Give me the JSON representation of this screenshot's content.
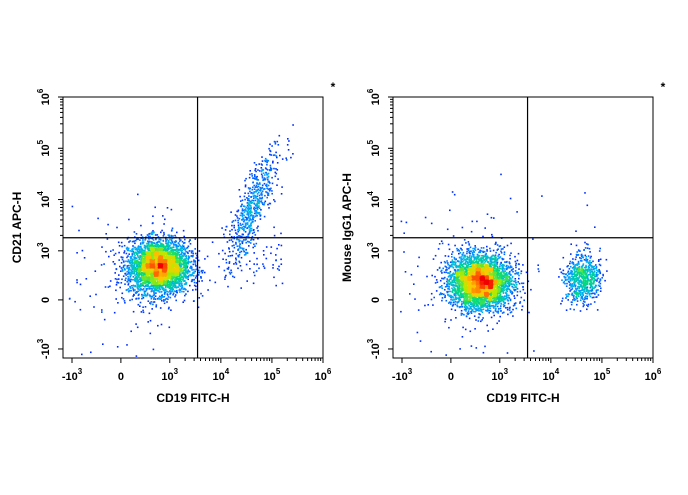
{
  "chart_data": [
    {
      "type": "scatter",
      "subtype": "flow-cytometry-density-dot-plot",
      "xlabel": "CD19 FITC-H",
      "ylabel": "CD21 APC-H",
      "corner_mark": "*",
      "axis_scale": "biexponential",
      "x_ticks": [
        {
          "base": "-10",
          "exp": "3",
          "value": -1000
        },
        {
          "base": "0",
          "exp": "",
          "value": 0
        },
        {
          "base": "10",
          "exp": "3",
          "value": 1000
        },
        {
          "base": "10",
          "exp": "4",
          "value": 10000
        },
        {
          "base": "10",
          "exp": "5",
          "value": 100000
        },
        {
          "base": "10",
          "exp": "6",
          "value": 1000000
        }
      ],
      "y_ticks": [
        {
          "base": "-10",
          "exp": "3",
          "value": -1000
        },
        {
          "base": "0",
          "exp": "",
          "value": 0
        },
        {
          "base": "10",
          "exp": "3",
          "value": 1000
        },
        {
          "base": "10",
          "exp": "4",
          "value": 10000
        },
        {
          "base": "10",
          "exp": "5",
          "value": 100000
        },
        {
          "base": "10",
          "exp": "6",
          "value": 1000000
        }
      ],
      "xlim": [
        -1500,
        1000000
      ],
      "ylim": [
        -1500,
        1000000
      ],
      "quadrant_gate": {
        "x": 3500,
        "y": 1800
      },
      "populations": [
        {
          "name": "CD19- CD21-",
          "center": {
            "x": 600,
            "y": 500
          },
          "density": "high"
        },
        {
          "name": "CD19+ CD21+",
          "center": {
            "x": 40000,
            "y": 7000
          },
          "density": "medium"
        }
      ]
    },
    {
      "type": "scatter",
      "subtype": "flow-cytometry-density-dot-plot",
      "xlabel": "CD19 FITC-H",
      "ylabel": "Mouse IgG1 APC-H",
      "corner_mark": "*",
      "axis_scale": "biexponential",
      "x_ticks": [
        {
          "base": "-10",
          "exp": "3",
          "value": -1000
        },
        {
          "base": "0",
          "exp": "",
          "value": 0
        },
        {
          "base": "10",
          "exp": "3",
          "value": 1000
        },
        {
          "base": "10",
          "exp": "4",
          "value": 10000
        },
        {
          "base": "10",
          "exp": "5",
          "value": 100000
        },
        {
          "base": "10",
          "exp": "6",
          "value": 1000000
        }
      ],
      "y_ticks": [
        {
          "base": "-10",
          "exp": "3",
          "value": -1000
        },
        {
          "base": "0",
          "exp": "",
          "value": 0
        },
        {
          "base": "10",
          "exp": "3",
          "value": 1000
        },
        {
          "base": "10",
          "exp": "4",
          "value": 10000
        },
        {
          "base": "10",
          "exp": "5",
          "value": 100000
        },
        {
          "base": "10",
          "exp": "6",
          "value": 1000000
        }
      ],
      "xlim": [
        -1500,
        1000000
      ],
      "ylim": [
        -1500,
        1000000
      ],
      "quadrant_gate": {
        "x": 3500,
        "y": 1800
      },
      "populations": [
        {
          "name": "CD19- IgG1-",
          "center": {
            "x": 400,
            "y": 250
          },
          "density": "high"
        },
        {
          "name": "CD19+ IgG1-",
          "center": {
            "x": 40000,
            "y": 300
          },
          "density": "medium"
        }
      ]
    }
  ]
}
